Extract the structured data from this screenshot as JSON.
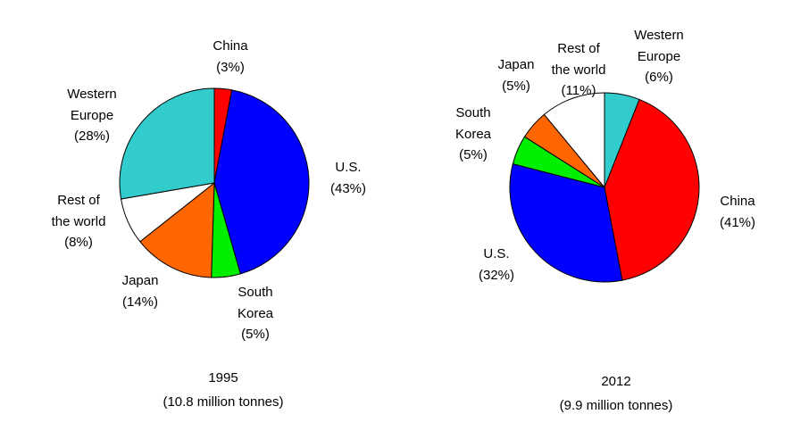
{
  "chart_data": [
    {
      "type": "pie",
      "title": "1995",
      "subtitle": "(10.8 million tonnes)",
      "categories": [
        "China",
        "U.S.",
        "South Korea",
        "Japan",
        "Rest of the world",
        "Western Europe"
      ],
      "values": [
        3,
        43,
        5,
        14,
        8,
        28
      ],
      "value_labels": [
        "(3%)",
        "(43%)",
        "(5%)",
        "(14%)",
        "(8%)",
        "(28%)"
      ],
      "colors": [
        "#ff0000",
        "#0000ff",
        "#00ee00",
        "#ff6600",
        "#ffffff",
        "#33cccc"
      ]
    },
    {
      "type": "pie",
      "title": "2012",
      "subtitle": "(9.9 million tonnes)",
      "categories": [
        "Western Europe",
        "China",
        "U.S.",
        "South Korea",
        "Japan",
        "Rest of the world"
      ],
      "values": [
        6,
        41,
        32,
        5,
        5,
        11
      ],
      "value_labels": [
        "(6%)",
        "(41%)",
        "(32%)",
        "(5%)",
        "(5%)",
        "(11%)"
      ],
      "colors": [
        "#33cccc",
        "#ff0000",
        "#0000ff",
        "#00ee00",
        "#ff6600",
        "#ffffff"
      ]
    }
  ]
}
